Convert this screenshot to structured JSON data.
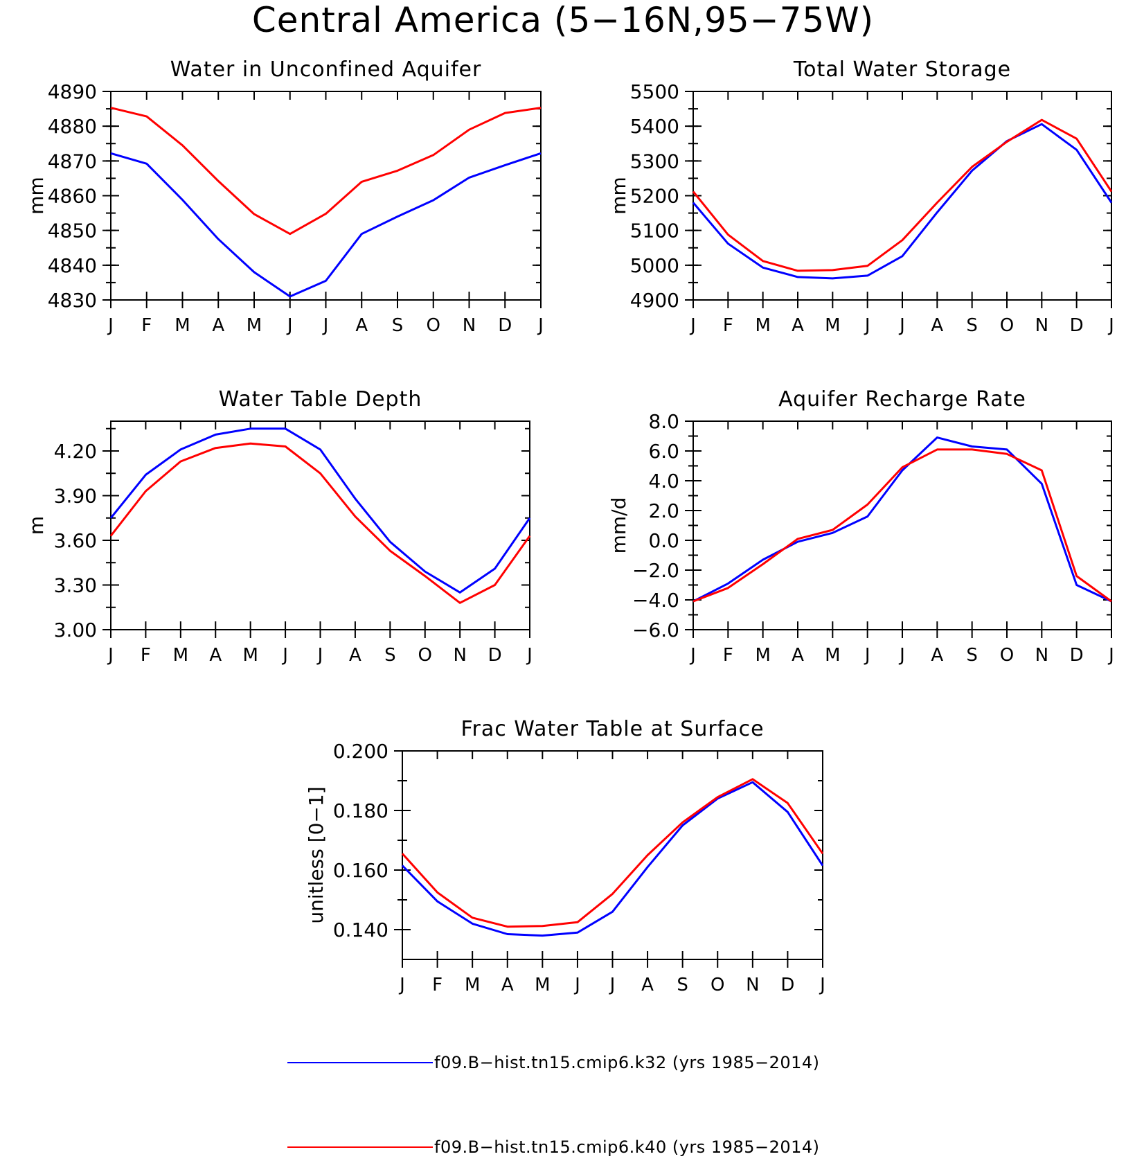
{
  "title": "Central America (5−16N,95−75W)",
  "colors": {
    "k32": "#0000ff",
    "k40": "#ff0000",
    "axis": "#000000"
  },
  "legend": [
    {
      "label": "f09.B−hist.tn15.cmip6.k32 (yrs 1985−2014)",
      "color": "#0000ff"
    },
    {
      "label": "f09.B−hist.tn15.cmip6.k40 (yrs 1985−2014)",
      "color": "#ff0000"
    }
  ],
  "chart_data": [
    {
      "type": "line",
      "title": "Water in Unconfined Aquifer",
      "ylabel": "mm",
      "categories": [
        "J",
        "F",
        "M",
        "A",
        "M",
        "J",
        "J",
        "A",
        "S",
        "O",
        "N",
        "D",
        "J"
      ],
      "ylim": [
        4830,
        4890
      ],
      "yticks": [
        4830,
        4840,
        4850,
        4860,
        4870,
        4880,
        4890
      ],
      "yticklabels": [
        "4830",
        "4840",
        "4850",
        "4860",
        "4870",
        "4880",
        "4890"
      ],
      "series": [
        {
          "name": "f09.B−hist.tn15.cmip6.k32 (yrs 1985−2014)",
          "color": "#0000ff",
          "values": [
            4872.2,
            4869.2,
            4858.8,
            4847.5,
            4838.0,
            4831.0,
            4835.5,
            4849.0,
            4854.0,
            4858.7,
            4865.2,
            4868.8,
            4872.2
          ]
        },
        {
          "name": "f09.B−hist.tn15.cmip6.k40 (yrs 1985−2014)",
          "color": "#ff0000",
          "values": [
            4885.3,
            4882.8,
            4874.5,
            4864.2,
            4854.7,
            4849.0,
            4854.8,
            4864.0,
            4867.2,
            4871.7,
            4879.0,
            4883.8,
            4885.3
          ]
        }
      ]
    },
    {
      "type": "line",
      "title": "Total Water Storage",
      "ylabel": "mm",
      "categories": [
        "J",
        "F",
        "M",
        "A",
        "M",
        "J",
        "J",
        "A",
        "S",
        "O",
        "N",
        "D",
        "J"
      ],
      "ylim": [
        4900,
        5500
      ],
      "yticks": [
        4900,
        5000,
        5100,
        5200,
        5300,
        5400,
        5500
      ],
      "yticklabels": [
        "4900",
        "5000",
        "5100",
        "5200",
        "5300",
        "5400",
        "5500"
      ],
      "series": [
        {
          "name": "f09.B−hist.tn15.cmip6.k32 (yrs 1985−2014)",
          "color": "#0000ff",
          "values": [
            5180,
            5062,
            4993,
            4966,
            4962,
            4970,
            5026,
            5152,
            5272,
            5357,
            5406,
            5332,
            5180
          ]
        },
        {
          "name": "f09.B−hist.tn15.cmip6.k40 (yrs 1985−2014)",
          "color": "#ff0000",
          "values": [
            5212,
            5088,
            5012,
            4984,
            4986,
            4998,
            5072,
            5180,
            5283,
            5355,
            5418,
            5364,
            5212
          ]
        }
      ]
    },
    {
      "type": "line",
      "title": "Water Table Depth",
      "ylabel": "m",
      "categories": [
        "J",
        "F",
        "M",
        "A",
        "M",
        "J",
        "J",
        "A",
        "S",
        "O",
        "N",
        "D",
        "J"
      ],
      "ylim": [
        3.0,
        4.4
      ],
      "yticks": [
        3.0,
        3.3,
        3.6,
        3.9,
        4.2
      ],
      "yticklabels": [
        "3.00",
        "3.30",
        "3.60",
        "3.90",
        "4.20"
      ],
      "series": [
        {
          "name": "f09.B−hist.tn15.cmip6.k32 (yrs 1985−2014)",
          "color": "#0000ff",
          "values": [
            3.75,
            4.04,
            4.21,
            4.31,
            4.35,
            4.35,
            4.21,
            3.88,
            3.59,
            3.39,
            3.25,
            3.41,
            3.75
          ]
        },
        {
          "name": "f09.B−hist.tn15.cmip6.k40 (yrs 1985−2014)",
          "color": "#ff0000",
          "values": [
            3.63,
            3.93,
            4.13,
            4.22,
            4.25,
            4.23,
            4.05,
            3.76,
            3.53,
            3.36,
            3.18,
            3.3,
            3.63
          ]
        }
      ]
    },
    {
      "type": "line",
      "title": "Aquifer Recharge Rate",
      "ylabel": "mm/d",
      "categories": [
        "J",
        "F",
        "M",
        "A",
        "M",
        "J",
        "J",
        "A",
        "S",
        "O",
        "N",
        "D",
        "J"
      ],
      "ylim": [
        -6.0,
        8.0
      ],
      "yticks": [
        -6.0,
        -4.0,
        -2.0,
        0.0,
        2.0,
        4.0,
        6.0,
        8.0
      ],
      "yticklabels": [
        "−6.0",
        "−4.0",
        "−2.0",
        "0.0",
        "2.0",
        "4.0",
        "6.0",
        "8.0"
      ],
      "series": [
        {
          "name": "f09.B−hist.tn15.cmip6.k32 (yrs 1985−2014)",
          "color": "#0000ff",
          "values": [
            -4.1,
            -2.9,
            -1.3,
            -0.1,
            0.5,
            1.6,
            4.7,
            6.9,
            6.3,
            6.1,
            3.8,
            -3.0,
            -4.1
          ]
        },
        {
          "name": "f09.B−hist.tn15.cmip6.k40 (yrs 1985−2014)",
          "color": "#ff0000",
          "values": [
            -4.1,
            -3.2,
            -1.6,
            0.1,
            0.7,
            2.4,
            4.9,
            6.1,
            6.1,
            5.8,
            4.7,
            -2.4,
            -4.1
          ]
        }
      ]
    },
    {
      "type": "line",
      "title": "Frac Water Table at Surface",
      "ylabel": "unitless [0−1]",
      "categories": [
        "J",
        "F",
        "M",
        "A",
        "M",
        "J",
        "J",
        "A",
        "S",
        "O",
        "N",
        "D",
        "J"
      ],
      "ylim": [
        0.13,
        0.2
      ],
      "yticks": [
        0.14,
        0.16,
        0.18,
        0.2
      ],
      "yticklabels": [
        "0.140",
        "0.160",
        "0.180",
        "0.200"
      ],
      "series": [
        {
          "name": "f09.B−hist.tn15.cmip6.k32 (yrs 1985−2014)",
          "color": "#0000ff",
          "values": [
            0.1615,
            0.1495,
            0.142,
            0.1385,
            0.138,
            0.139,
            0.146,
            0.161,
            0.175,
            0.184,
            0.1895,
            0.1795,
            0.1615
          ]
        },
        {
          "name": "f09.B−hist.tn15.cmip6.k40 (yrs 1985−2014)",
          "color": "#ff0000",
          "values": [
            0.1655,
            0.1525,
            0.144,
            0.141,
            0.1412,
            0.1425,
            0.152,
            0.165,
            0.176,
            0.1845,
            0.1905,
            0.1825,
            0.1655
          ]
        }
      ]
    }
  ]
}
